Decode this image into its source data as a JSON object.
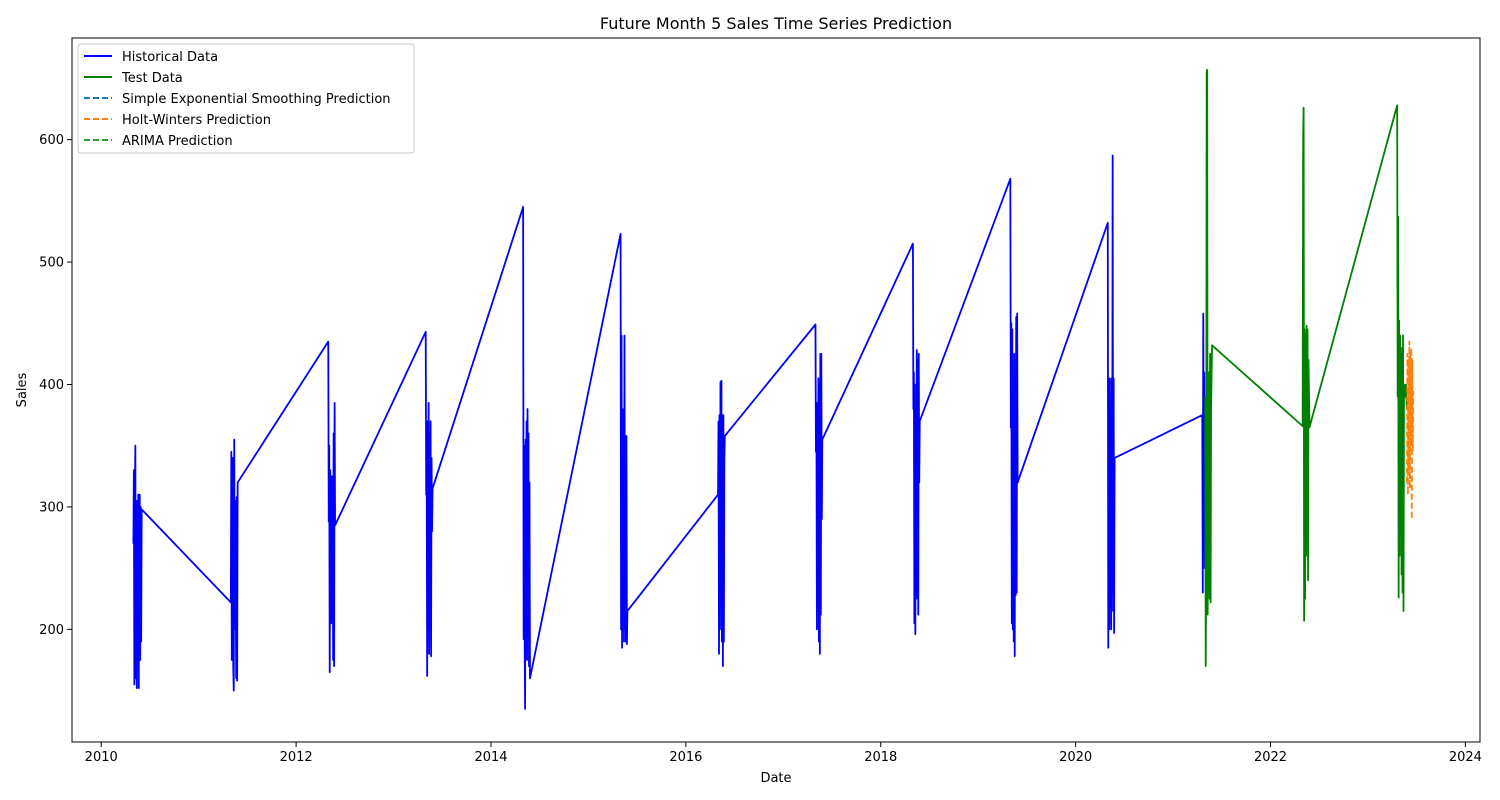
{
  "chart_data": {
    "type": "line",
    "title": "Future Month 5 Sales Time Series Prediction",
    "xlabel": "Date",
    "ylabel": "Sales",
    "xlim": [
      2009.7,
      2024.15
    ],
    "ylim": [
      108,
      683
    ],
    "x_ticks": [
      2010,
      2012,
      2014,
      2016,
      2018,
      2020,
      2022,
      2024
    ],
    "y_ticks": [
      200,
      300,
      400,
      500,
      600
    ],
    "grid": false,
    "legend_position": "top-left",
    "series": [
      {
        "name": "Historical Data",
        "color": "#0000ff",
        "style": "solid",
        "points": [
          [
            2010.33,
            270
          ],
          [
            2010.335,
            330
          ],
          [
            2010.34,
            155
          ],
          [
            2010.345,
            300
          ],
          [
            2010.35,
            350
          ],
          [
            2010.355,
            160
          ],
          [
            2010.36,
            280
          ],
          [
            2010.365,
            152
          ],
          [
            2010.37,
            305
          ],
          [
            2010.375,
            200
          ],
          [
            2010.38,
            310
          ],
          [
            2010.385,
            152
          ],
          [
            2010.39,
            290
          ],
          [
            2010.395,
            310
          ],
          [
            2010.4,
            175
          ],
          [
            2010.405,
            300
          ],
          [
            2010.41,
            190
          ],
          [
            2010.415,
            298
          ],
          [
            2011.33,
            222
          ],
          [
            2011.335,
            345
          ],
          [
            2011.34,
            175
          ],
          [
            2011.345,
            280
          ],
          [
            2011.35,
            340
          ],
          [
            2011.355,
            170
          ],
          [
            2011.36,
            150
          ],
          [
            2011.365,
            355
          ],
          [
            2011.37,
            200
          ],
          [
            2011.375,
            305
          ],
          [
            2011.38,
            240
          ],
          [
            2011.385,
            160
          ],
          [
            2011.39,
            308
          ],
          [
            2011.395,
            158
          ],
          [
            2011.4,
            320
          ],
          [
            2012.33,
            435
          ],
          [
            2012.335,
            288
          ],
          [
            2012.34,
            350
          ],
          [
            2012.345,
            165
          ],
          [
            2012.35,
            330
          ],
          [
            2012.355,
            300
          ],
          [
            2012.36,
            205
          ],
          [
            2012.365,
            325
          ],
          [
            2012.37,
            290
          ],
          [
            2012.375,
            320
          ],
          [
            2012.38,
            175
          ],
          [
            2012.385,
            360
          ],
          [
            2012.39,
            170
          ],
          [
            2012.395,
            385
          ],
          [
            2012.4,
            285
          ],
          [
            2013.33,
            443
          ],
          [
            2013.335,
            310
          ],
          [
            2013.34,
            335
          ],
          [
            2013.345,
            162
          ],
          [
            2013.35,
            370
          ],
          [
            2013.355,
            230
          ],
          [
            2013.36,
            385
          ],
          [
            2013.365,
            180
          ],
          [
            2013.37,
            360
          ],
          [
            2013.375,
            250
          ],
          [
            2013.38,
            370
          ],
          [
            2013.385,
            178
          ],
          [
            2013.39,
            340
          ],
          [
            2013.395,
            280
          ],
          [
            2013.4,
            315
          ],
          [
            2014.33,
            545
          ],
          [
            2014.335,
            192
          ],
          [
            2014.34,
            350
          ],
          [
            2014.345,
            200
          ],
          [
            2014.35,
            135
          ],
          [
            2014.355,
            355
          ],
          [
            2014.36,
            190
          ],
          [
            2014.365,
            370
          ],
          [
            2014.37,
            175
          ],
          [
            2014.375,
            380
          ],
          [
            2014.38,
            250
          ],
          [
            2014.385,
            360
          ],
          [
            2014.39,
            170
          ],
          [
            2014.395,
            320
          ],
          [
            2014.4,
            160
          ],
          [
            2015.33,
            523
          ],
          [
            2015.335,
            200
          ],
          [
            2015.34,
            440
          ],
          [
            2015.345,
            185
          ],
          [
            2015.35,
            380
          ],
          [
            2015.355,
            210
          ],
          [
            2015.36,
            350
          ],
          [
            2015.365,
            190
          ],
          [
            2015.37,
            440
          ],
          [
            2015.375,
            200
          ],
          [
            2015.38,
            355
          ],
          [
            2015.385,
            190
          ],
          [
            2015.39,
            358
          ],
          [
            2015.395,
            188
          ],
          [
            2015.4,
            215
          ],
          [
            2016.33,
            310
          ],
          [
            2016.335,
            370
          ],
          [
            2016.34,
            180
          ],
          [
            2016.345,
            375
          ],
          [
            2016.35,
            200
          ],
          [
            2016.355,
            402
          ],
          [
            2016.36,
            220
          ],
          [
            2016.365,
            403
          ],
          [
            2016.37,
            190
          ],
          [
            2016.375,
            375
          ],
          [
            2016.38,
            170
          ],
          [
            2016.385,
            375
          ],
          [
            2016.39,
            190
          ],
          [
            2016.395,
            340
          ],
          [
            2016.4,
            358
          ],
          [
            2017.33,
            449
          ],
          [
            2017.335,
            345
          ],
          [
            2017.34,
            380
          ],
          [
            2017.345,
            200
          ],
          [
            2017.35,
            385
          ],
          [
            2017.355,
            220
          ],
          [
            2017.36,
            405
          ],
          [
            2017.365,
            190
          ],
          [
            2017.37,
            400
          ],
          [
            2017.375,
            180
          ],
          [
            2017.38,
            425
          ],
          [
            2017.385,
            212
          ],
          [
            2017.39,
            425
          ],
          [
            2017.395,
            290
          ],
          [
            2017.4,
            355
          ],
          [
            2018.33,
            515
          ],
          [
            2018.335,
            380
          ],
          [
            2018.34,
            410
          ],
          [
            2018.345,
            205
          ],
          [
            2018.35,
            400
          ],
          [
            2018.355,
            196
          ],
          [
            2018.36,
            372
          ],
          [
            2018.365,
            230
          ],
          [
            2018.37,
            428
          ],
          [
            2018.375,
            225
          ],
          [
            2018.38,
            420
          ],
          [
            2018.385,
            212
          ],
          [
            2018.39,
            425
          ],
          [
            2018.395,
            320
          ],
          [
            2018.4,
            370
          ],
          [
            2019.33,
            568
          ],
          [
            2019.335,
            365
          ],
          [
            2019.34,
            450
          ],
          [
            2019.345,
            205
          ],
          [
            2019.35,
            445
          ],
          [
            2019.355,
            200
          ],
          [
            2019.36,
            405
          ],
          [
            2019.365,
            190
          ],
          [
            2019.37,
            425
          ],
          [
            2019.375,
            178
          ],
          [
            2019.38,
            395
          ],
          [
            2019.385,
            228
          ],
          [
            2019.39,
            455
          ],
          [
            2019.395,
            230
          ],
          [
            2019.4,
            458
          ],
          [
            2019.405,
            320
          ],
          [
            2020.33,
            532
          ],
          [
            2020.335,
            185
          ],
          [
            2020.34,
            395
          ],
          [
            2020.345,
            200
          ],
          [
            2020.35,
            405
          ],
          [
            2020.355,
            220
          ],
          [
            2020.36,
            380
          ],
          [
            2020.365,
            200
          ],
          [
            2020.37,
            405
          ],
          [
            2020.375,
            230
          ],
          [
            2020.38,
            587
          ],
          [
            2020.385,
            215
          ],
          [
            2020.39,
            405
          ],
          [
            2020.395,
            197
          ],
          [
            2020.4,
            340
          ],
          [
            2021.3,
            375
          ],
          [
            2021.305,
            230
          ],
          [
            2021.31,
            458
          ],
          [
            2021.315,
            300
          ],
          [
            2021.32,
            410
          ],
          [
            2021.325,
            250
          ],
          [
            2021.33,
            390
          ]
        ]
      },
      {
        "name": "Test Data",
        "color": "#008000",
        "style": "solid",
        "points": [
          [
            2021.33,
            390
          ],
          [
            2021.335,
            170
          ],
          [
            2021.34,
            260
          ],
          [
            2021.345,
            655
          ],
          [
            2021.35,
            657
          ],
          [
            2021.355,
            212
          ],
          [
            2021.36,
            300
          ],
          [
            2021.365,
            240
          ],
          [
            2021.37,
            410
          ],
          [
            2021.375,
            225
          ],
          [
            2021.38,
            425
          ],
          [
            2021.385,
            222
          ],
          [
            2021.39,
            380
          ],
          [
            2021.4,
            432
          ],
          [
            2022.33,
            366
          ],
          [
            2022.335,
            600
          ],
          [
            2022.34,
            626
          ],
          [
            2022.345,
            207
          ],
          [
            2022.35,
            445
          ],
          [
            2022.355,
            225
          ],
          [
            2022.36,
            440
          ],
          [
            2022.365,
            260
          ],
          [
            2022.37,
            448
          ],
          [
            2022.375,
            270
          ],
          [
            2022.38,
            445
          ],
          [
            2022.385,
            240
          ],
          [
            2022.39,
            420
          ],
          [
            2022.4,
            365
          ],
          [
            2023.3,
            628
          ],
          [
            2023.305,
            390
          ],
          [
            2023.31,
            537
          ],
          [
            2023.315,
            226
          ],
          [
            2023.32,
            452
          ],
          [
            2023.325,
            260
          ],
          [
            2023.33,
            440
          ],
          [
            2023.335,
            280
          ],
          [
            2023.34,
            425
          ],
          [
            2023.345,
            245
          ],
          [
            2023.35,
            430
          ],
          [
            2023.355,
            230
          ],
          [
            2023.36,
            440
          ],
          [
            2023.365,
            215
          ],
          [
            2023.37,
            400
          ],
          [
            2023.38,
            390
          ],
          [
            2023.39,
            400
          ],
          [
            2023.4,
            380
          ]
        ]
      },
      {
        "name": "Simple Exponential Smoothing Prediction",
        "color": "#1f77b4",
        "style": "dashed",
        "points": []
      },
      {
        "name": "Holt-Winters Prediction",
        "color": "#ff7f0e",
        "style": "dashed",
        "points": [
          [
            2023.4,
            320
          ],
          [
            2023.405,
            425
          ],
          [
            2023.41,
            310
          ],
          [
            2023.415,
            420
          ],
          [
            2023.42,
            330
          ],
          [
            2023.425,
            435
          ],
          [
            2023.43,
            315
          ],
          [
            2023.435,
            425
          ],
          [
            2023.44,
            350
          ],
          [
            2023.445,
            430
          ],
          [
            2023.45,
            290
          ],
          [
            2023.455,
            420
          ],
          [
            2023.46,
            345
          ],
          [
            2023.465,
            395
          ]
        ]
      },
      {
        "name": "ARIMA Prediction",
        "color": "#2ca02c",
        "style": "dashed",
        "points": []
      }
    ]
  }
}
